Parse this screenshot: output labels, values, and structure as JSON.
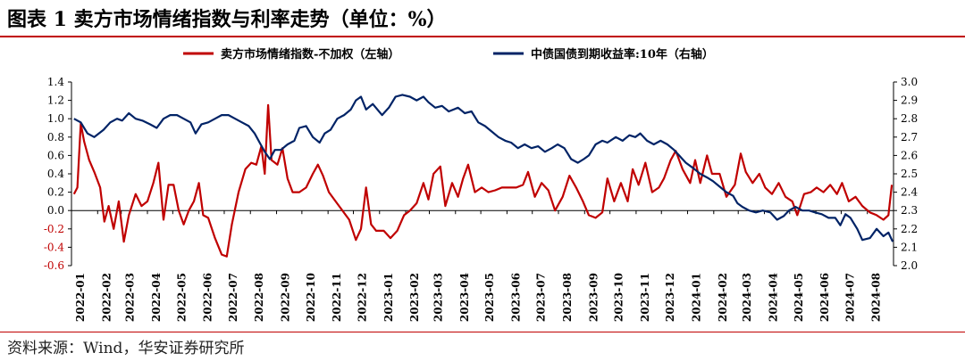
{
  "title": "图表 1 卖方市场情绪指数与利率走势（单位：%）",
  "source": "资料来源：Wind，华安证券研究所",
  "colors": {
    "series1": "#c00000",
    "series2": "#002366",
    "accent": "#c00000"
  },
  "chart_data": {
    "type": "line",
    "legend_position": "top-center",
    "grid": false,
    "x_ticks": [
      "2022-01",
      "2022-02",
      "2022-03",
      "2022-04",
      "2022-05",
      "2022-06",
      "2022-07",
      "2022-08",
      "2022-09",
      "2022-10",
      "2022-11",
      "2022-12",
      "2023-01",
      "2023-02",
      "2023-03",
      "2023-04",
      "2023-05",
      "2023-06",
      "2023-07",
      "2023-08",
      "2023-09",
      "2023-10",
      "2023-11",
      "2023-12",
      "2024-01",
      "2024-02",
      "2024-03",
      "2024-04",
      "2024-05",
      "2024-06",
      "2024-07",
      "2024-08"
    ],
    "y_left": {
      "range": [
        -0.6,
        1.4
      ],
      "ticks": [
        "1.4",
        "1.2",
        "1.0",
        "0.8",
        "0.6",
        "0.4",
        "0.2",
        "0.0",
        "-0.2",
        "-0.4",
        "-0.6"
      ]
    },
    "y_right": {
      "range": [
        2.0,
        3.0
      ],
      "ticks": [
        "3.0",
        "2.9",
        "2.8",
        "2.7",
        "2.6",
        "2.5",
        "2.4",
        "2.3",
        "2.2",
        "2.1",
        "2.0"
      ]
    },
    "series": [
      {
        "name": "卖方市场情绪指数-不加权（左轴）",
        "axis": "left",
        "points": [
          [
            "2022-01-04",
            0.18
          ],
          [
            "2022-01-08",
            0.25
          ],
          [
            "2022-01-12",
            0.95
          ],
          [
            "2022-01-16",
            0.75
          ],
          [
            "2022-01-22",
            0.55
          ],
          [
            "2022-01-28",
            0.42
          ],
          [
            "2022-02-04",
            0.25
          ],
          [
            "2022-02-09",
            -0.12
          ],
          [
            "2022-02-14",
            0.05
          ],
          [
            "2022-02-20",
            -0.2
          ],
          [
            "2022-02-26",
            0.1
          ],
          [
            "2022-03-04",
            -0.34
          ],
          [
            "2022-03-10",
            -0.05
          ],
          [
            "2022-03-18",
            0.18
          ],
          [
            "2022-03-25",
            0.05
          ],
          [
            "2022-04-01",
            0.1
          ],
          [
            "2022-04-08",
            0.3
          ],
          [
            "2022-04-14",
            0.52
          ],
          [
            "2022-04-20",
            -0.1
          ],
          [
            "2022-04-26",
            0.28
          ],
          [
            "2022-05-02",
            0.28
          ],
          [
            "2022-05-08",
            0.0
          ],
          [
            "2022-05-14",
            -0.15
          ],
          [
            "2022-05-20",
            0.0
          ],
          [
            "2022-05-26",
            0.1
          ],
          [
            "2022-06-01",
            0.3
          ],
          [
            "2022-06-06",
            -0.05
          ],
          [
            "2022-06-12",
            -0.08
          ],
          [
            "2022-06-20",
            -0.3
          ],
          [
            "2022-06-28",
            -0.48
          ],
          [
            "2022-07-04",
            -0.5
          ],
          [
            "2022-07-10",
            -0.15
          ],
          [
            "2022-07-18",
            0.2
          ],
          [
            "2022-07-26",
            0.45
          ],
          [
            "2022-08-02",
            0.52
          ],
          [
            "2022-08-08",
            0.5
          ],
          [
            "2022-08-14",
            0.7
          ],
          [
            "2022-08-18",
            0.4
          ],
          [
            "2022-08-22",
            1.15
          ],
          [
            "2022-08-26",
            0.55
          ],
          [
            "2022-09-02",
            0.5
          ],
          [
            "2022-09-08",
            0.68
          ],
          [
            "2022-09-14",
            0.35
          ],
          [
            "2022-09-20",
            0.2
          ],
          [
            "2022-09-28",
            0.2
          ],
          [
            "2022-10-06",
            0.25
          ],
          [
            "2022-10-14",
            0.4
          ],
          [
            "2022-10-20",
            0.5
          ],
          [
            "2022-10-26",
            0.38
          ],
          [
            "2022-11-02",
            0.2
          ],
          [
            "2022-11-10",
            0.1
          ],
          [
            "2022-11-18",
            0.0
          ],
          [
            "2022-11-26",
            -0.1
          ],
          [
            "2022-12-04",
            -0.32
          ],
          [
            "2022-12-10",
            -0.2
          ],
          [
            "2022-12-16",
            0.25
          ],
          [
            "2022-12-22",
            -0.15
          ],
          [
            "2022-12-28",
            -0.22
          ],
          [
            "2023-01-06",
            -0.22
          ],
          [
            "2023-01-14",
            -0.3
          ],
          [
            "2023-01-22",
            -0.22
          ],
          [
            "2023-01-30",
            -0.05
          ],
          [
            "2023-02-06",
            0.0
          ],
          [
            "2023-02-14",
            0.08
          ],
          [
            "2023-02-22",
            0.3
          ],
          [
            "2023-02-28",
            0.12
          ],
          [
            "2023-03-06",
            0.4
          ],
          [
            "2023-03-14",
            0.48
          ],
          [
            "2023-03-20",
            0.05
          ],
          [
            "2023-03-28",
            0.3
          ],
          [
            "2023-04-04",
            0.15
          ],
          [
            "2023-04-10",
            0.35
          ],
          [
            "2023-04-16",
            0.5
          ],
          [
            "2023-04-24",
            0.2
          ],
          [
            "2023-05-02",
            0.25
          ],
          [
            "2023-05-10",
            0.2
          ],
          [
            "2023-05-18",
            0.22
          ],
          [
            "2023-05-26",
            0.25
          ],
          [
            "2023-06-04",
            0.25
          ],
          [
            "2023-06-12",
            0.25
          ],
          [
            "2023-06-20",
            0.28
          ],
          [
            "2023-06-26",
            0.42
          ],
          [
            "2023-07-04",
            0.15
          ],
          [
            "2023-07-12",
            0.3
          ],
          [
            "2023-07-20",
            0.22
          ],
          [
            "2023-07-28",
            0.0
          ],
          [
            "2023-08-06",
            0.15
          ],
          [
            "2023-08-14",
            0.38
          ],
          [
            "2023-08-22",
            0.25
          ],
          [
            "2023-08-30",
            0.1
          ],
          [
            "2023-09-06",
            -0.05
          ],
          [
            "2023-09-14",
            -0.08
          ],
          [
            "2023-09-22",
            -0.02
          ],
          [
            "2023-09-28",
            0.35
          ],
          [
            "2023-10-06",
            0.1
          ],
          [
            "2023-10-14",
            0.3
          ],
          [
            "2023-10-22",
            0.1
          ],
          [
            "2023-10-28",
            0.45
          ],
          [
            "2023-11-04",
            0.28
          ],
          [
            "2023-11-12",
            0.52
          ],
          [
            "2023-11-20",
            0.2
          ],
          [
            "2023-11-28",
            0.25
          ],
          [
            "2023-12-04",
            0.35
          ],
          [
            "2023-12-12",
            0.55
          ],
          [
            "2023-12-18",
            0.65
          ],
          [
            "2023-12-26",
            0.45
          ],
          [
            "2024-01-04",
            0.3
          ],
          [
            "2024-01-10",
            0.55
          ],
          [
            "2024-01-16",
            0.3
          ],
          [
            "2024-01-24",
            0.6
          ],
          [
            "2024-01-30",
            0.4
          ],
          [
            "2024-02-08",
            0.4
          ],
          [
            "2024-02-16",
            0.15
          ],
          [
            "2024-02-26",
            0.28
          ],
          [
            "2024-03-04",
            0.62
          ],
          [
            "2024-03-10",
            0.42
          ],
          [
            "2024-03-18",
            0.3
          ],
          [
            "2024-03-26",
            0.4
          ],
          [
            "2024-04-02",
            0.25
          ],
          [
            "2024-04-10",
            0.18
          ],
          [
            "2024-04-18",
            0.3
          ],
          [
            "2024-04-26",
            0.15
          ],
          [
            "2024-05-04",
            0.1
          ],
          [
            "2024-05-10",
            -0.05
          ],
          [
            "2024-05-18",
            0.18
          ],
          [
            "2024-05-26",
            0.2
          ],
          [
            "2024-06-02",
            0.25
          ],
          [
            "2024-06-10",
            0.2
          ],
          [
            "2024-06-18",
            0.28
          ],
          [
            "2024-06-26",
            0.18
          ],
          [
            "2024-07-02",
            0.3
          ],
          [
            "2024-07-10",
            0.1
          ],
          [
            "2024-07-18",
            0.15
          ],
          [
            "2024-07-26",
            0.05
          ],
          [
            "2024-08-04",
            -0.02
          ],
          [
            "2024-08-12",
            -0.05
          ],
          [
            "2024-08-20",
            -0.1
          ],
          [
            "2024-08-26",
            -0.05
          ],
          [
            "2024-08-30",
            0.28
          ]
        ]
      },
      {
        "name": "中债国债到期收益率:10年（右轴）",
        "axis": "right",
        "points": [
          [
            "2022-01-04",
            2.8
          ],
          [
            "2022-01-12",
            2.78
          ],
          [
            "2022-01-20",
            2.72
          ],
          [
            "2022-01-28",
            2.7
          ],
          [
            "2022-02-08",
            2.74
          ],
          [
            "2022-02-16",
            2.78
          ],
          [
            "2022-02-24",
            2.8
          ],
          [
            "2022-03-02",
            2.79
          ],
          [
            "2022-03-10",
            2.83
          ],
          [
            "2022-03-18",
            2.8
          ],
          [
            "2022-03-26",
            2.79
          ],
          [
            "2022-04-04",
            2.77
          ],
          [
            "2022-04-12",
            2.75
          ],
          [
            "2022-04-20",
            2.8
          ],
          [
            "2022-04-28",
            2.82
          ],
          [
            "2022-05-06",
            2.82
          ],
          [
            "2022-05-14",
            2.8
          ],
          [
            "2022-05-22",
            2.78
          ],
          [
            "2022-05-28",
            2.72
          ],
          [
            "2022-06-04",
            2.77
          ],
          [
            "2022-06-12",
            2.78
          ],
          [
            "2022-06-20",
            2.8
          ],
          [
            "2022-06-28",
            2.82
          ],
          [
            "2022-07-06",
            2.82
          ],
          [
            "2022-07-14",
            2.8
          ],
          [
            "2022-07-22",
            2.78
          ],
          [
            "2022-07-30",
            2.76
          ],
          [
            "2022-08-06",
            2.72
          ],
          [
            "2022-08-12",
            2.67
          ],
          [
            "2022-08-18",
            2.62
          ],
          [
            "2022-08-24",
            2.58
          ],
          [
            "2022-08-30",
            2.63
          ],
          [
            "2022-09-06",
            2.63
          ],
          [
            "2022-09-14",
            2.66
          ],
          [
            "2022-09-22",
            2.68
          ],
          [
            "2022-09-28",
            2.75
          ],
          [
            "2022-10-06",
            2.76
          ],
          [
            "2022-10-14",
            2.7
          ],
          [
            "2022-10-22",
            2.67
          ],
          [
            "2022-10-28",
            2.72
          ],
          [
            "2022-11-04",
            2.74
          ],
          [
            "2022-11-12",
            2.8
          ],
          [
            "2022-11-20",
            2.82
          ],
          [
            "2022-11-28",
            2.85
          ],
          [
            "2022-12-04",
            2.9
          ],
          [
            "2022-12-10",
            2.92
          ],
          [
            "2022-12-16",
            2.85
          ],
          [
            "2022-12-24",
            2.88
          ],
          [
            "2023-01-04",
            2.82
          ],
          [
            "2023-01-12",
            2.86
          ],
          [
            "2023-01-20",
            2.92
          ],
          [
            "2023-01-28",
            2.93
          ],
          [
            "2023-02-06",
            2.92
          ],
          [
            "2023-02-14",
            2.9
          ],
          [
            "2023-02-22",
            2.92
          ],
          [
            "2023-02-28",
            2.89
          ],
          [
            "2023-03-08",
            2.86
          ],
          [
            "2023-03-16",
            2.87
          ],
          [
            "2023-03-24",
            2.84
          ],
          [
            "2023-04-04",
            2.86
          ],
          [
            "2023-04-12",
            2.83
          ],
          [
            "2023-04-20",
            2.84
          ],
          [
            "2023-04-28",
            2.78
          ],
          [
            "2023-05-06",
            2.76
          ],
          [
            "2023-05-14",
            2.73
          ],
          [
            "2023-05-22",
            2.7
          ],
          [
            "2023-05-30",
            2.68
          ],
          [
            "2023-06-06",
            2.67
          ],
          [
            "2023-06-14",
            2.64
          ],
          [
            "2023-06-22",
            2.66
          ],
          [
            "2023-06-30",
            2.64
          ],
          [
            "2023-07-08",
            2.65
          ],
          [
            "2023-07-16",
            2.62
          ],
          [
            "2023-07-24",
            2.64
          ],
          [
            "2023-07-31",
            2.66
          ],
          [
            "2023-08-08",
            2.64
          ],
          [
            "2023-08-16",
            2.58
          ],
          [
            "2023-08-24",
            2.56
          ],
          [
            "2023-08-31",
            2.58
          ],
          [
            "2023-09-06",
            2.6
          ],
          [
            "2023-09-14",
            2.66
          ],
          [
            "2023-09-22",
            2.68
          ],
          [
            "2023-09-28",
            2.67
          ],
          [
            "2023-10-08",
            2.7
          ],
          [
            "2023-10-16",
            2.68
          ],
          [
            "2023-10-24",
            2.71
          ],
          [
            "2023-10-31",
            2.7
          ],
          [
            "2023-11-06",
            2.72
          ],
          [
            "2023-11-14",
            2.68
          ],
          [
            "2023-11-22",
            2.66
          ],
          [
            "2023-11-30",
            2.68
          ],
          [
            "2023-12-08",
            2.66
          ],
          [
            "2023-12-16",
            2.63
          ],
          [
            "2023-12-22",
            2.6
          ],
          [
            "2023-12-30",
            2.56
          ],
          [
            "2024-01-08",
            2.53
          ],
          [
            "2024-01-16",
            2.5
          ],
          [
            "2024-01-24",
            2.48
          ],
          [
            "2024-01-31",
            2.46
          ],
          [
            "2024-02-08",
            2.43
          ],
          [
            "2024-02-16",
            2.4
          ],
          [
            "2024-02-24",
            2.38
          ],
          [
            "2024-02-29",
            2.34
          ],
          [
            "2024-03-06",
            2.32
          ],
          [
            "2024-03-14",
            2.3
          ],
          [
            "2024-03-22",
            2.29
          ],
          [
            "2024-03-30",
            2.3
          ],
          [
            "2024-04-08",
            2.29
          ],
          [
            "2024-04-16",
            2.25
          ],
          [
            "2024-04-24",
            2.27
          ],
          [
            "2024-04-30",
            2.3
          ],
          [
            "2024-05-08",
            2.32
          ],
          [
            "2024-05-16",
            2.3
          ],
          [
            "2024-05-24",
            2.3
          ],
          [
            "2024-05-31",
            2.29
          ],
          [
            "2024-06-08",
            2.28
          ],
          [
            "2024-06-16",
            2.26
          ],
          [
            "2024-06-24",
            2.26
          ],
          [
            "2024-06-30",
            2.22
          ],
          [
            "2024-07-06",
            2.28
          ],
          [
            "2024-07-12",
            2.26
          ],
          [
            "2024-07-20",
            2.2
          ],
          [
            "2024-07-26",
            2.14
          ],
          [
            "2024-08-04",
            2.15
          ],
          [
            "2024-08-12",
            2.2
          ],
          [
            "2024-08-20",
            2.16
          ],
          [
            "2024-08-26",
            2.18
          ],
          [
            "2024-08-31",
            2.13
          ]
        ]
      }
    ]
  }
}
